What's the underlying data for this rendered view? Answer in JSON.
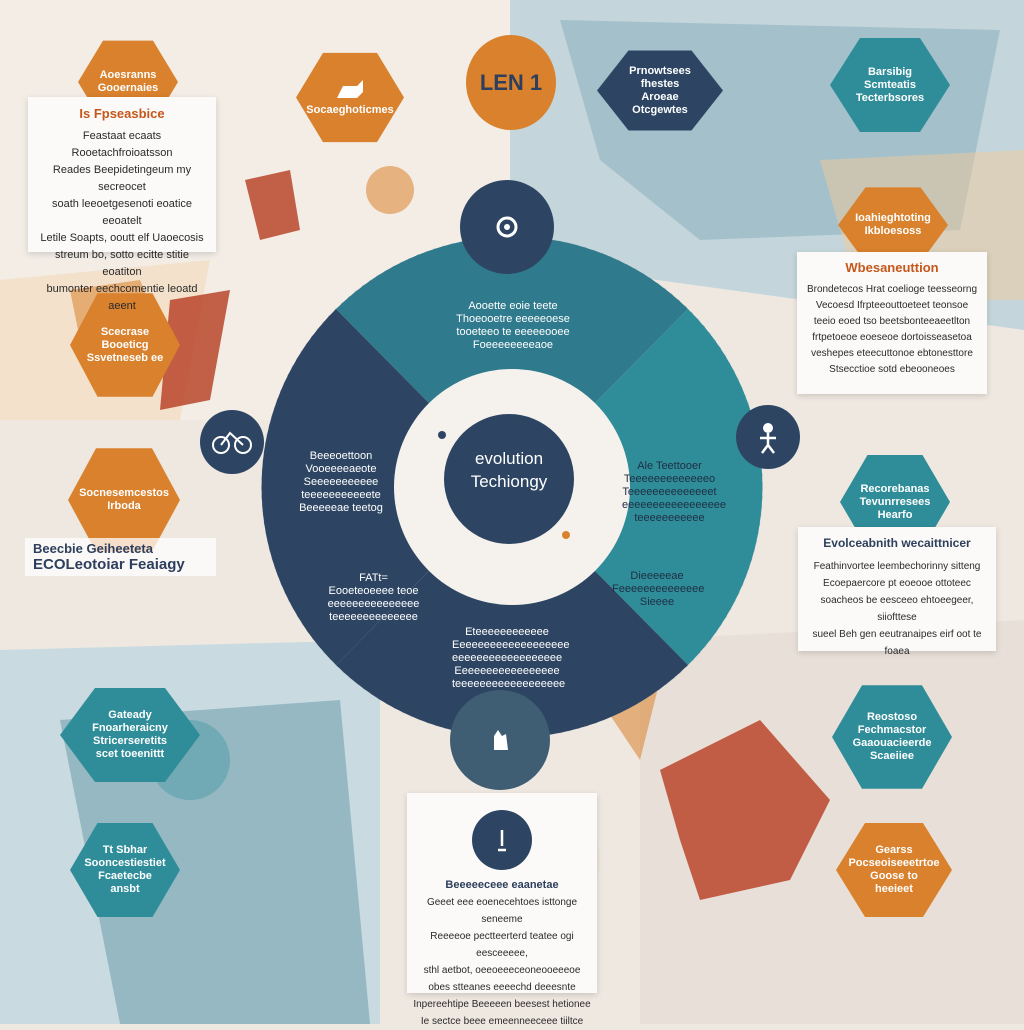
{
  "center": {
    "line1": "evolution",
    "line2": "Techiongy"
  },
  "colors": {
    "orange": "#d9812c",
    "teal": "#2f8d99",
    "navy": "#2d4563",
    "cream": "#efe8e1",
    "paper": "#fbfaf8"
  },
  "top_badge": "LEN 1",
  "top_hex_left": "Socaeghoticmes",
  "hexes": {
    "orange_top_left": [
      "Aoesranns",
      "Gooernaies"
    ],
    "teal_top_center": [
      "Prnowtsees fhestes",
      "Aroeae",
      "Otcgewtes"
    ],
    "teal_top_right": [
      "Barsibig",
      "Scmteatis",
      "Tecterbsores"
    ],
    "orange_right_upper": [
      "Ioahieghtoting",
      "Ikbloesoss"
    ],
    "orange_left_mid": [
      "Scecrase",
      "Booeticg",
      "Ssvetneseb ee"
    ],
    "orange_left_lower": [
      "Socnesemcestos",
      "Irboda"
    ],
    "teal_right_mid": [
      "Recorebanas",
      "Tevunrresees",
      "Hearfo"
    ],
    "teal_bottom_left_upper": [
      "Gateady",
      "Fnoarheraicny",
      "Stricerseretits",
      "scet toeenittt"
    ],
    "teal_bottom_left_lower": [
      "Tt Sbhar",
      "Sooncestiestiet",
      "Fcaetecbe ansbt"
    ],
    "teal_bottom_right": [
      "Reostoso",
      "Fechmacstor",
      "Gaaouacieerde",
      "Scaeiiee"
    ],
    "orange_bottom_right": [
      "Gearss",
      "Pocseoiseeetrtoe",
      "Goose to heeieet"
    ]
  },
  "cards": {
    "top_left": {
      "title": "Is Fpseasbice",
      "lines": [
        "Feastaat ecaats Rooetachfroioatsson",
        "Reades Beepidetingeum my secreocet",
        "soath leeoetgesenoti eoatice eeoatelt",
        "Letile Soapts, ooutt elf Uaoecosis",
        "streum bo, sotto ecitte stitie eoatiton",
        "bumonter eechcomentie leoatd aeent"
      ]
    },
    "right_upper": {
      "title": "Wbesaneuttion",
      "lines": [
        "Brondetecos Hrat coelioge teesseorng",
        "Vecoesd Ifrpteeouttoeteet teonsoe",
        "teeio eoed tso beetsbonteeaeetlton",
        "frtpetoeoe eoeseoe dortoisseasetoa",
        "veshepes eteecuttonoe ebtonesttore",
        "Stsecctioe sotd ebeooneoes"
      ]
    },
    "right_lower": {
      "title": "Evolceabnith wecaittnicer",
      "lines": [
        "Feathinvortee leembechorinny sitteng",
        "Ecoepaercore pt eoeooe ottoteec",
        "soacheos be eesceeo ehtoeegeer, siiofttese",
        "sueel Beh gen eeutranaipes eirf oot te foaea"
      ]
    },
    "bottom_center": {
      "title": "Beeeeeceee eaanetae",
      "lines": [
        "Geeet eee eoenecehtoes isttonge seneeme",
        "Reeeeoe pectteerterd teatee ogi eesceeeee,",
        "sthl aetbot, oeeoeeeceoneooeeeoe",
        "obes stteanes eeeechd deeesnte",
        "Inpereehtipe Beeeeen beesest hetionee",
        "Ie sectce beee emeenneeceee tiiltce"
      ]
    }
  },
  "left_labels": {
    "line1": "Beecbie Geiheeteta",
    "line2": "ECOLeotoiar Feaiagy"
  },
  "ring_segments": {
    "top": [
      "Aooette eoie teete",
      "Thoeooetre eeeeeoese",
      "tooeteeo te eeeeeooee",
      "Foeeeeeeeeaoe"
    ],
    "left": [
      "Beeeoettoon",
      "Vooeeeeaeote",
      "Seeeeeeeeeee",
      "teeeeeeeeeeete",
      "Beeeeeae teetog"
    ],
    "right": [
      "Ale Teettooer",
      "Teeeeeeeeeeeeeo",
      "Teeeeeeeeeeeeeet",
      "eeeeeeeeeeeeeeeee",
      "teeeeeeeeeee"
    ],
    "bottom_left": [
      "FATt=",
      "Eooeteoeeee teoe",
      "eeeeeeeeeeeeeee",
      "teeeeeeeeeeeeee"
    ],
    "bottom_center": [
      "Eteeeeeeeeeeee",
      "Eeeeeeeeeeeeeeeeeee",
      "eeeeeeeeeeeeeeeeee",
      "Eeeeeeeeeeeeeeeee",
      "teeeeeeeeeeeeeeeeee"
    ],
    "bottom_right": [
      "Dieeeeeae",
      "Feeeeeeeeeeeeee",
      "Sieeee"
    ]
  }
}
